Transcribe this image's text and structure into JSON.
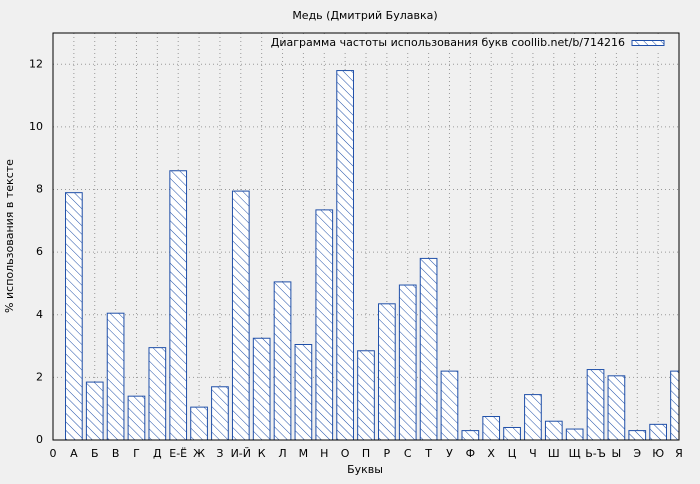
{
  "chart_data": {
    "type": "bar",
    "title": "Медь (Дмитрий Булавка)",
    "xlabel": "Буквы",
    "ylabel": "% использования в тексте",
    "x": [
      1,
      2,
      3,
      4,
      5,
      6,
      7,
      8,
      9,
      10,
      11,
      12,
      13,
      14,
      15,
      16,
      17,
      18,
      19,
      20,
      21,
      22,
      23,
      24,
      25,
      26,
      27,
      28,
      29,
      30
    ],
    "series": [
      {
        "name": "Диаграмма частоты использования букв coollib.net/b/714216",
        "color": "#1f4fa8",
        "values": [
          7.9,
          1.85,
          4.05,
          1.4,
          2.95,
          8.6,
          1.05,
          1.7,
          7.95,
          3.25,
          5.05,
          3.05,
          7.35,
          11.8,
          2.85,
          4.35,
          4.95,
          5.8,
          2.2,
          0.3,
          0.75,
          0.4,
          1.45,
          0.6,
          0.35,
          2.25,
          2.05,
          0.3,
          0.5,
          2.2
        ]
      }
    ],
    "xlim": [
      0,
      30
    ],
    "xticks": [
      0,
      {
        "value": 1,
        "label": "А"
      },
      {
        "value": 2,
        "label": "Б"
      },
      {
        "value": 3,
        "label": "В"
      },
      {
        "value": 4,
        "label": "Г"
      },
      {
        "value": 5,
        "label": "Д"
      },
      {
        "value": 6,
        "label": "Е-Ё"
      },
      {
        "value": 7,
        "label": "Ж"
      },
      {
        "value": 8,
        "label": "З"
      },
      {
        "value": 9,
        "label": "И-Й"
      },
      {
        "value": 10,
        "label": "К"
      },
      {
        "value": 11,
        "label": "Л"
      },
      {
        "value": 12,
        "label": "М"
      },
      {
        "value": 13,
        "label": "Н"
      },
      {
        "value": 14,
        "label": "О"
      },
      {
        "value": 15,
        "label": "П"
      },
      {
        "value": 16,
        "label": "Р"
      },
      {
        "value": 17,
        "label": "С"
      },
      {
        "value": 18,
        "label": "Т"
      },
      {
        "value": 19,
        "label": "У"
      },
      {
        "value": 20,
        "label": "Ф"
      },
      {
        "value": 21,
        "label": "Х"
      },
      {
        "value": 22,
        "label": "Ц"
      },
      {
        "value": 23,
        "label": "Ч"
      },
      {
        "value": 24,
        "label": "Ш"
      },
      {
        "value": 25,
        "label": "Щ"
      },
      {
        "value": 26,
        "label": "Ь-Ъ"
      },
      {
        "value": 27,
        "label": "Ы"
      },
      {
        "value": 28,
        "label": "Э"
      },
      {
        "value": 29,
        "label": "Ю"
      },
      {
        "value": 30,
        "label": "Я"
      }
    ],
    "ylim": [
      0,
      13
    ],
    "yticks": [
      0,
      2,
      4,
      6,
      8,
      10,
      12
    ],
    "grid": true,
    "legend": "top-right"
  }
}
